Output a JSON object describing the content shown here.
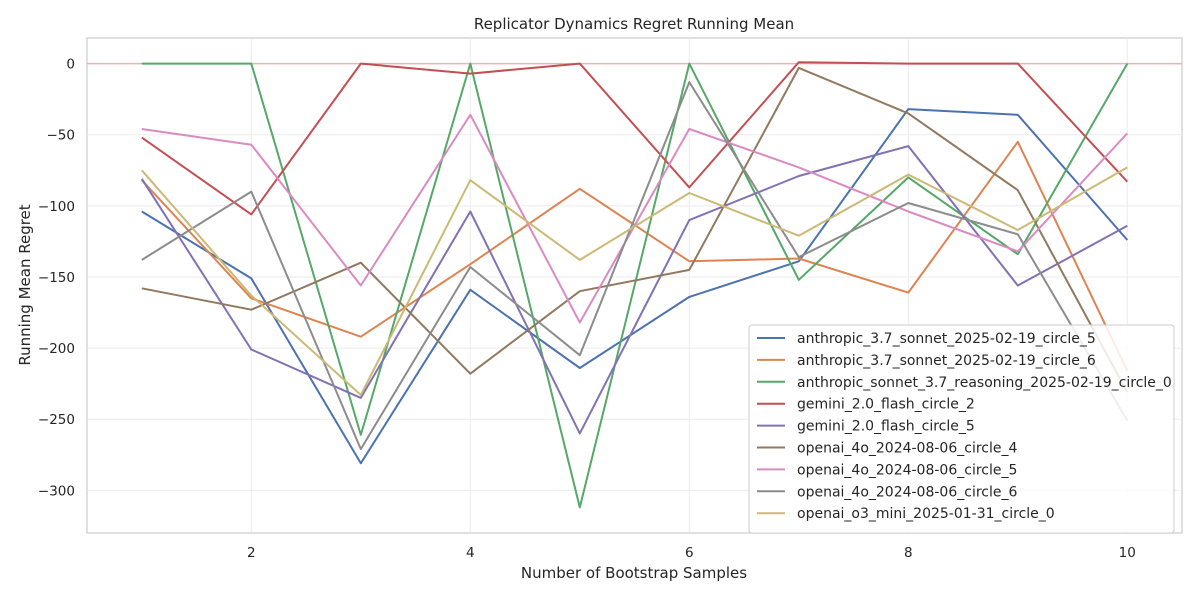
{
  "chart_data": {
    "type": "line",
    "title": "Replicator Dynamics Regret Running Mean",
    "xlabel": "Number of Bootstrap Samples",
    "ylabel": "Running Mean Regret",
    "x": [
      1,
      2,
      3,
      4,
      5,
      6,
      7,
      8,
      9,
      10
    ],
    "xlim": [
      0.5,
      10.5
    ],
    "ylim": [
      -330,
      18
    ],
    "xticks": [
      2,
      4,
      6,
      8,
      10
    ],
    "yticks": [
      0,
      -50,
      -100,
      -150,
      -200,
      -250,
      -300
    ],
    "grid": true,
    "legend_position": "lower-right",
    "reference_line": {
      "y": 0,
      "color": "#e8b4b4"
    },
    "series": [
      {
        "name": "anthropic_3.7_sonnet_2025-02-19_circle_5",
        "color": "#4c72b0",
        "values": [
          -104,
          -151,
          -281,
          -159,
          -214,
          -164,
          -139,
          -32,
          -36,
          -124
        ]
      },
      {
        "name": "anthropic_3.7_sonnet_2025-02-19_circle_6",
        "color": "#dd8452",
        "values": [
          -82,
          -165,
          -192,
          -141,
          -88,
          -139,
          -137,
          -161,
          -55,
          -216
        ]
      },
      {
        "name": "anthropic_sonnet_3.7_reasoning_2025-02-19_circle_0",
        "color": "#55a868",
        "values": [
          0,
          0,
          -261,
          0,
          -312,
          0,
          -152,
          -80,
          -134,
          0
        ]
      },
      {
        "name": "gemini_2.0_flash_circle_2",
        "color": "#c44e52",
        "values": [
          -52,
          -106,
          0,
          -7,
          0,
          -87,
          1,
          0,
          0,
          -83
        ]
      },
      {
        "name": "gemini_2.0_flash_circle_5",
        "color": "#8172b3",
        "values": [
          -81,
          -201,
          -235,
          -104,
          -260,
          -110,
          -79,
          -58,
          -156,
          -114
        ]
      },
      {
        "name": "openai_4o_2024-08-06_circle_4",
        "color": "#937860",
        "values": [
          -158,
          -173,
          -140,
          -218,
          -160,
          -145,
          -3,
          -35,
          -89,
          -231
        ]
      },
      {
        "name": "openai_4o_2024-08-06_circle_5",
        "color": "#da8bc3",
        "values": [
          -46,
          -57,
          -156,
          -36,
          -182,
          -46,
          -73,
          -104,
          -132,
          -49
        ]
      },
      {
        "name": "openai_4o_2024-08-06_circle_6",
        "color": "#8c8c8c",
        "values": [
          -138,
          -90,
          -271,
          -143,
          -205,
          -13,
          -136,
          -98,
          -120,
          -251
        ]
      },
      {
        "name": "openai_o3_mini_2025-01-31_circle_0",
        "color": "#ccb974",
        "values": [
          -75,
          -163,
          -233,
          -82,
          -138,
          -91,
          -121,
          -78,
          -117,
          -73
        ]
      }
    ]
  }
}
